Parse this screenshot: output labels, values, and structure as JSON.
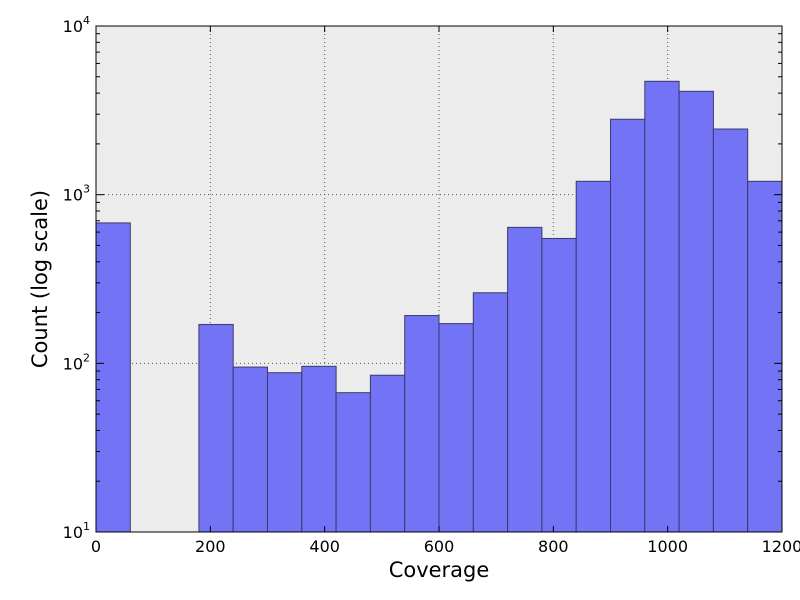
{
  "chart_data": {
    "type": "bar",
    "title": "",
    "xlabel": "Coverage",
    "ylabel": "Count (log scale)",
    "x_scale": "linear",
    "y_scale": "log",
    "xlim": [
      0,
      1200
    ],
    "ylim": [
      10,
      10000
    ],
    "grid": true,
    "colors": {
      "plot_background": "#ececec",
      "bar_fill": "#7373f5",
      "bar_edge": "#3a3a6a",
      "grid": "#555555"
    },
    "x_ticks": [
      {
        "value": 0,
        "label": "0"
      },
      {
        "value": 200,
        "label": "200"
      },
      {
        "value": 400,
        "label": "400"
      },
      {
        "value": 600,
        "label": "600"
      },
      {
        "value": 800,
        "label": "800"
      },
      {
        "value": 1000,
        "label": "1000"
      },
      {
        "value": 1200,
        "label": "1200"
      }
    ],
    "y_ticks": [
      {
        "value": 10,
        "base": "10",
        "exponent": "1"
      },
      {
        "value": 100,
        "base": "10",
        "exponent": "2"
      },
      {
        "value": 1000,
        "base": "10",
        "exponent": "3"
      },
      {
        "value": 10000,
        "base": "10",
        "exponent": "4"
      }
    ],
    "bins": [
      {
        "x0": 0,
        "x1": 60,
        "count": 680
      },
      {
        "x0": 180,
        "x1": 240,
        "count": 170
      },
      {
        "x0": 240,
        "x1": 300,
        "count": 95
      },
      {
        "x0": 300,
        "x1": 360,
        "count": 88
      },
      {
        "x0": 360,
        "x1": 420,
        "count": 96
      },
      {
        "x0": 420,
        "x1": 480,
        "count": 67
      },
      {
        "x0": 480,
        "x1": 540,
        "count": 85
      },
      {
        "x0": 540,
        "x1": 600,
        "count": 192
      },
      {
        "x0": 600,
        "x1": 660,
        "count": 172
      },
      {
        "x0": 660,
        "x1": 720,
        "count": 262
      },
      {
        "x0": 720,
        "x1": 780,
        "count": 640
      },
      {
        "x0": 780,
        "x1": 840,
        "count": 550
      },
      {
        "x0": 840,
        "x1": 900,
        "count": 1200
      },
      {
        "x0": 900,
        "x1": 960,
        "count": 2800
      },
      {
        "x0": 960,
        "x1": 1020,
        "count": 4700
      },
      {
        "x0": 1020,
        "x1": 1080,
        "count": 4100
      },
      {
        "x0": 1080,
        "x1": 1140,
        "count": 2450
      },
      {
        "x0": 1140,
        "x1": 1200,
        "count": 1200
      }
    ]
  }
}
